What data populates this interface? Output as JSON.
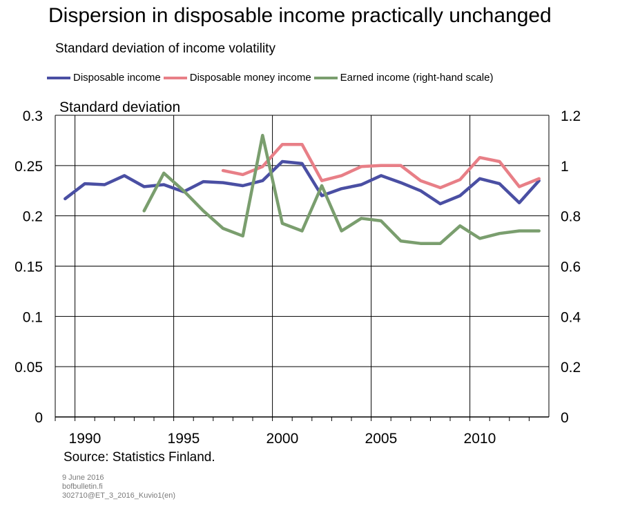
{
  "title": "Dispersion in disposable income practically unchanged",
  "subtitle": "Standard deviation of income volatility",
  "footer": {
    "source": "Source: Statistics Finland.",
    "date": "9 June 2016",
    "site": "bofbulletin.fi",
    "code": "302710@ET_3_2016_Kuvio1(en)"
  },
  "chart_data": {
    "type": "line",
    "ylabel_left": "Standard deviation",
    "ylim_left": [
      0,
      0.3
    ],
    "ylim_right": [
      0,
      1.2
    ],
    "xlim": [
      1988.5,
      2013.5
    ],
    "x_ticks": [
      "1990",
      "1995",
      "2000",
      "2005",
      "2010"
    ],
    "y_ticks_left": [
      "0",
      "0.05",
      "0.1",
      "0.15",
      "0.2",
      "0.25",
      "0.3"
    ],
    "y_ticks_right": [
      "0",
      "0.2",
      "0.4",
      "0.6",
      "0.8",
      "1",
      "1.2"
    ],
    "grid": true,
    "legend_position": "top",
    "series": [
      {
        "name": "Disposable income",
        "color": "#4a4fa3",
        "axis": "left",
        "x": [
          1989,
          1990,
          1991,
          1992,
          1993,
          1994,
          1995,
          1996,
          1997,
          1998,
          1999,
          2000,
          2001,
          2002,
          2003,
          2004,
          2005,
          2006,
          2007,
          2008,
          2009,
          2010,
          2011,
          2012,
          2013
        ],
        "y": [
          0.217,
          0.232,
          0.231,
          0.24,
          0.229,
          0.231,
          0.224,
          0.234,
          0.233,
          0.23,
          0.235,
          0.254,
          0.252,
          0.22,
          0.227,
          0.231,
          0.24,
          0.233,
          0.225,
          0.212,
          0.22,
          0.237,
          0.232,
          0.213,
          0.235
        ]
      },
      {
        "name": "Disposable money income",
        "color": "#e87f87",
        "axis": "left",
        "x": [
          1997,
          1998,
          1999,
          2000,
          2001,
          2002,
          2003,
          2004,
          2005,
          2006,
          2007,
          2008,
          2009,
          2010,
          2011,
          2012,
          2013
        ],
        "y": [
          0.245,
          0.241,
          0.249,
          0.271,
          0.271,
          0.235,
          0.24,
          0.249,
          0.25,
          0.25,
          0.235,
          0.228,
          0.236,
          0.258,
          0.254,
          0.229,
          0.237
        ]
      },
      {
        "name": "Earned income (right-hand scale)",
        "color": "#7a9e6e",
        "axis": "right",
        "x": [
          1993,
          1994,
          1995,
          1996,
          1997,
          1998,
          1999,
          2000,
          2001,
          2002,
          2003,
          2004,
          2005,
          2006,
          2007,
          2008,
          2009,
          2010,
          2011,
          2012,
          2013
        ],
        "y": [
          0.82,
          0.97,
          0.9,
          0.82,
          0.75,
          0.72,
          1.12,
          0.77,
          0.74,
          0.92,
          0.74,
          0.79,
          0.78,
          0.7,
          0.69,
          0.69,
          0.76,
          0.71,
          0.73,
          0.74,
          0.74
        ]
      }
    ]
  }
}
